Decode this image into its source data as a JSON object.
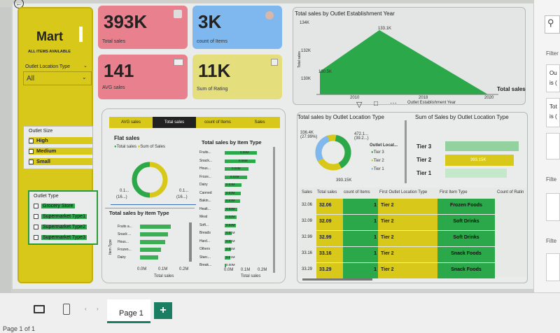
{
  "page": {
    "name": "Page 1",
    "status": "Page 1 of 1",
    "add_label": "+"
  },
  "slicer": {
    "title": "Mart",
    "subtitle": "ALL ITEMS AVAILABLE",
    "location_label": "Outlet Location Type",
    "location_value": "All",
    "size_label": "Outlet Size",
    "sizes": [
      "High",
      "Medium",
      "Small"
    ],
    "type_label": "Outlet Type",
    "types": [
      "Grocery Store",
      "Supermarket Type1",
      "Supermarket Type2",
      "Supermarket Type3"
    ]
  },
  "kpis": [
    {
      "value": "393K",
      "label": "Total sales",
      "color": "#e8808e"
    },
    {
      "value": "3K",
      "label": "count of Items",
      "color": "#7fb8ee"
    },
    {
      "value": "141",
      "label": "AVG sales",
      "color": "#e8808e"
    },
    {
      "value": "11K",
      "label": "Sum of Rating",
      "color": "#e4de7c"
    }
  ],
  "tabs": [
    "AVG sales",
    "Total sales",
    "count of Items",
    "Sales"
  ],
  "fat_panel": {
    "title": "Flat sales",
    "legend": [
      "Total sales",
      "Sum of Sales"
    ],
    "label_left": "0.1...",
    "label_left2": "(16...)",
    "label_right": "0.1...",
    "label_right2": "(16...)"
  },
  "item_type_bars": {
    "title": "Total sales by Item Type",
    "rows": [
      "Fruits...",
      "Snack...",
      "Hous...",
      "Froze...",
      "Dairy",
      "Canned",
      "Bakin...",
      "Healt...",
      "Meat",
      "Soft...",
      "Breads",
      "Hard...",
      "Others",
      "Starc...",
      "Break..."
    ],
    "value_labels": [
      "0.06M",
      "0.06M",
      "0.04M",
      "0.04M",
      "0.03M",
      "0.03M",
      "0.03M",
      "0.02M",
      "0.02M",
      "0.02M",
      "0.01M",
      "0.01M",
      "0.01M",
      "0.01M",
      "0.00M"
    ],
    "axis": [
      "0.0M",
      "0.1M",
      "0.2M"
    ],
    "xlabel": "Total sales"
  },
  "item_type_small": {
    "title": "Total sales by Item Type",
    "rows": [
      "Fruits a...",
      "Snack ...",
      "Hous...",
      "Frozen...",
      "Dairy"
    ],
    "axis": [
      "0.0M",
      "0.1M",
      "0.2M"
    ],
    "xlabel": "Total sales",
    "ylabel": "Item Type"
  },
  "year_chart": {
    "title": "Total sales by Outlet Establishment Year",
    "ylabels": [
      "134K",
      "132K",
      "130K"
    ],
    "peak_label": "133.1K",
    "low_label": "130.5K",
    "xticks": [
      "2010",
      "2018",
      "2020"
    ],
    "xlabel": "Outlet Establishment Year",
    "ylabel": "Total sales",
    "legend": "Total sales"
  },
  "donut_location": {
    "title": "Total sales by Outlet Location Type",
    "labels": [
      "336.4K (27.99%)",
      "472.1... (39.2...)",
      "393.15K"
    ],
    "legend_title": "Outlet Locat...",
    "legend": [
      "Tier 3",
      "Tier 2",
      "Tier 1"
    ]
  },
  "tier_bars": {
    "title": "Sum of Sales by Outlet Location Type",
    "tiers": [
      "Tier 3",
      "Tier 2",
      "Tier 1"
    ],
    "highlight": "393.15K"
  },
  "table": {
    "headers": [
      "Sales",
      "Total sales",
      "count of Items",
      "First Outlet Location Type",
      "First Item Type",
      "Count of Ratin"
    ],
    "rows": [
      {
        "sales": "32.06",
        "total": "32.06",
        "count": "1",
        "tier": "Tier 2",
        "item": "Frozen Foods"
      },
      {
        "sales": "32.09",
        "total": "32.09",
        "count": "1",
        "tier": "Tier 2",
        "item": "Soft Drinks"
      },
      {
        "sales": "32.99",
        "total": "32.99",
        "count": "1",
        "tier": "Tier 2",
        "item": "Soft Drinks"
      },
      {
        "sales": "33.16",
        "total": "33.16",
        "count": "1",
        "tier": "Tier 2",
        "item": "Snack Foods"
      },
      {
        "sales": "33.29",
        "total": "33.29",
        "count": "1",
        "tier": "Tier 2",
        "item": "Snack Foods"
      }
    ]
  },
  "right_panel": {
    "filters_label": "Filter",
    "card1_line1": "Ou",
    "card1_line2": "is (",
    "card2_line1": "Tot",
    "card2_line2": "is (",
    "filters_label2": "Filte",
    "filters_label3": "Filte"
  }
}
